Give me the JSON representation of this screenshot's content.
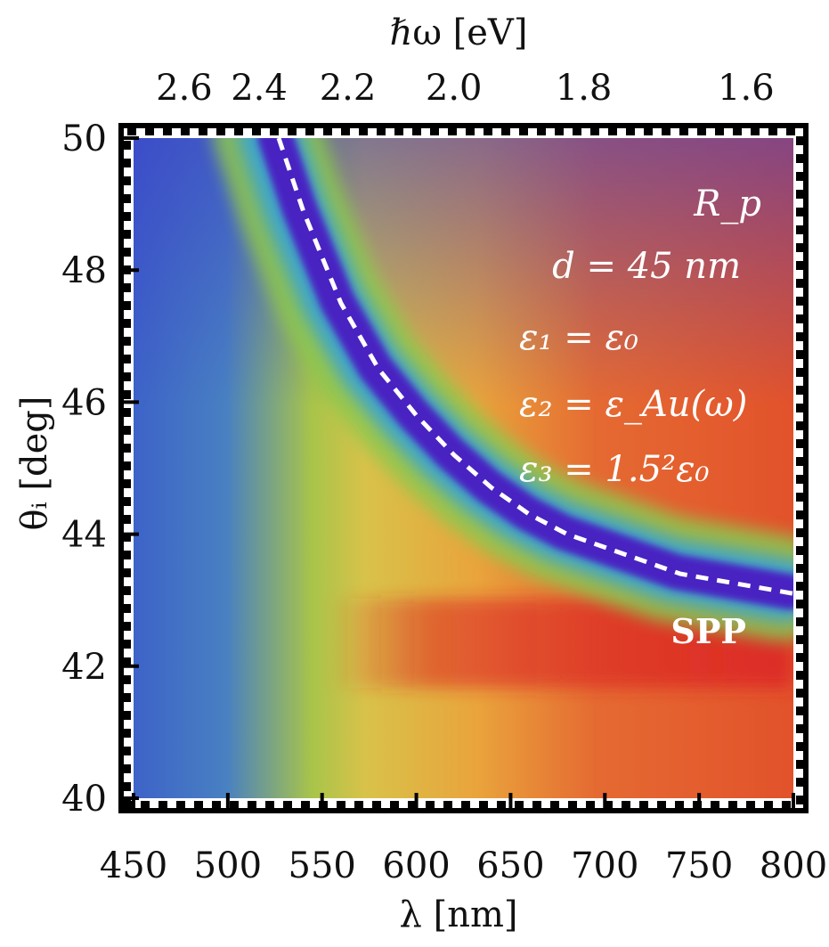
{
  "chart_data": {
    "type": "heatmap",
    "quantity": "R_p",
    "colorscale": [
      "#3b57c9",
      "#4a2fc0",
      "#5b9fc0",
      "#9fc44a",
      "#e8c64a",
      "#e9a03a",
      "#e5622e",
      "#dc2824"
    ],
    "xlabel": "λ [nm]",
    "ylabel": "θᵢ [deg]",
    "x2label": "ℏω [eV]",
    "xlim": [
      450,
      800
    ],
    "ylim": [
      40,
      50
    ],
    "x_ticks": [
      "450",
      "500",
      "550",
      "600",
      "650",
      "700",
      "750",
      "800"
    ],
    "y_ticks": [
      "40",
      "42",
      "44",
      "46",
      "48",
      "50"
    ],
    "x2_ticks": [
      {
        "label": "2.6",
        "lambda_nm": 476.9
      },
      {
        "label": "2.4",
        "lambda_nm": 516.6
      },
      {
        "label": "2.2",
        "lambda_nm": 563.6
      },
      {
        "label": "2.0",
        "lambda_nm": 619.9
      },
      {
        "label": "1.8",
        "lambda_nm": 688.8
      },
      {
        "label": "1.6",
        "lambda_nm": 774.9
      }
    ],
    "dispersion_curve": {
      "style": "white dashed",
      "lambda_nm": [
        527,
        540,
        560,
        580,
        600,
        620,
        640,
        660,
        680,
        700,
        720,
        740,
        760,
        780,
        800
      ],
      "theta_deg": [
        50.0,
        48.9,
        47.5,
        46.5,
        45.8,
        45.2,
        44.7,
        44.3,
        44.0,
        43.8,
        43.6,
        43.4,
        43.3,
        43.2,
        43.1
      ]
    },
    "annotations": {
      "rp": "R_p",
      "thickness": "d = 45 nm",
      "eps1": "ε₁ = ε₀",
      "eps2": "ε₂ = ε_Au(ω)",
      "eps3": "ε₃ = 1.5²ε₀",
      "spp": "SPP"
    }
  }
}
